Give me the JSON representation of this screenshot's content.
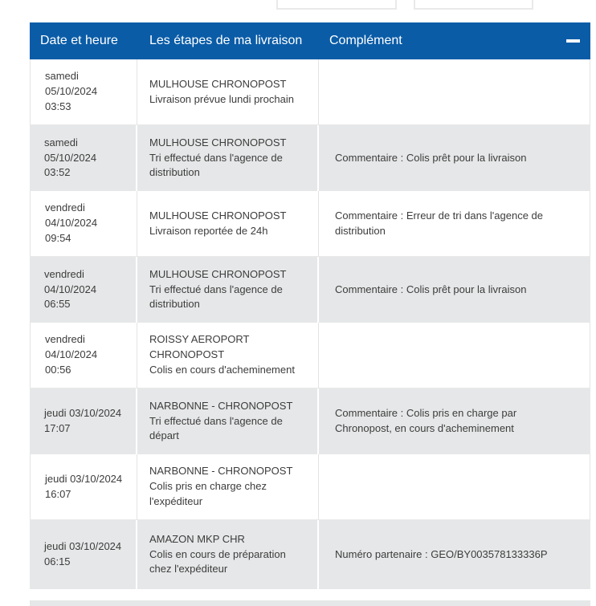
{
  "colors": {
    "header_bg": "#0a5ca7",
    "header_text": "#ffffff",
    "row_bg": "#ffffff",
    "row_alt_bg": "#e6e7e8",
    "border": "#e4e4e4",
    "body_text": "#3c3c3c"
  },
  "header": {
    "col1": "Date et heure",
    "col2": "Les étapes de ma livraison",
    "col3": "Complément",
    "collapse_icon": "minus-icon"
  },
  "rows": [
    {
      "date": "samedi\n05/10/2024\n03:53",
      "step": "MULHOUSE CHRONOPOST\nLivraison prévue lundi prochain",
      "complement": ""
    },
    {
      "date": "samedi\n05/10/2024\n03:52",
      "step": "MULHOUSE CHRONOPOST\nTri effectué dans l'agence de distribution",
      "complement": "Commentaire : Colis prêt pour la livraison"
    },
    {
      "date": "vendredi\n04/10/2024\n09:54",
      "step": "MULHOUSE CHRONOPOST\nLivraison reportée de 24h",
      "complement": "Commentaire : Erreur de tri dans l'agence de distribution"
    },
    {
      "date": "vendredi\n04/10/2024\n06:55",
      "step": "MULHOUSE CHRONOPOST\nTri effectué dans l'agence de distribution",
      "complement": "Commentaire : Colis prêt pour la livraison"
    },
    {
      "date": "vendredi\n04/10/2024\n00:56",
      "step": "ROISSY AEROPORT\nCHRONOPOST\nColis en cours d'acheminement",
      "complement": ""
    },
    {
      "date": "jeudi 03/10/2024\n17:07",
      "step": "NARBONNE - CHRONOPOST\nTri effectué dans l'agence de départ",
      "complement": "Commentaire : Colis pris en charge par Chronopost, en cours d'acheminement"
    },
    {
      "date": "jeudi 03/10/2024\n16:07",
      "step": "NARBONNE - CHRONOPOST\nColis pris en charge chez l'expéditeur",
      "complement": ""
    },
    {
      "date": "jeudi 03/10/2024\n06:15",
      "step": "AMAZON MKP CHR\nColis en cours de préparation chez l'expéditeur",
      "complement": "Numéro partenaire : GEO/BY003578133336P"
    }
  ]
}
